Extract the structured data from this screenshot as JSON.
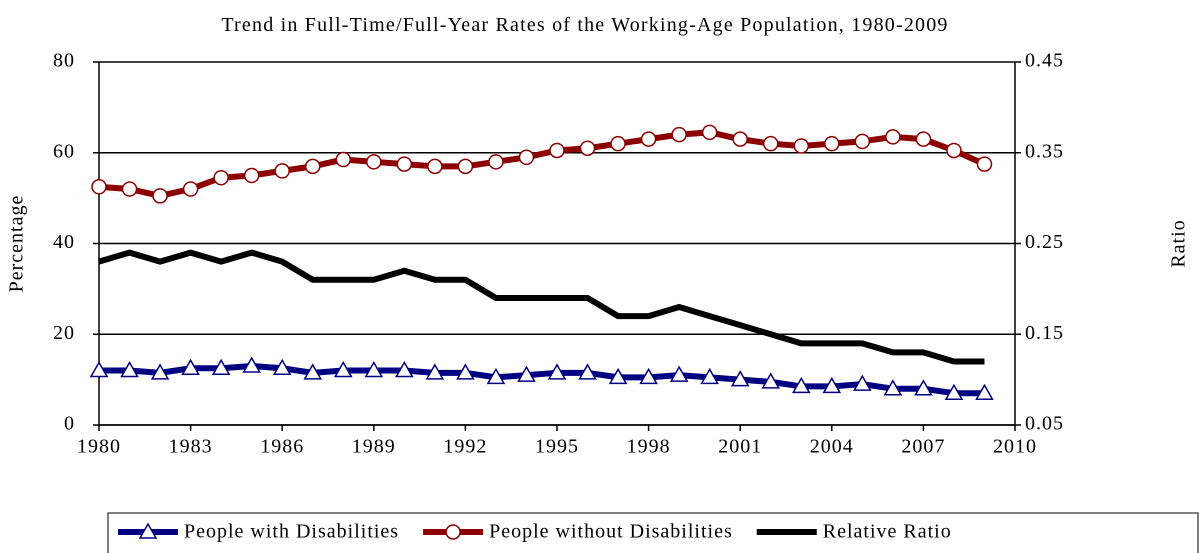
{
  "chart_data": {
    "type": "line",
    "title": "Trend in Full-Time/Full-Year Rates of the Working-Age Population, 1980-2009",
    "y_label": "Percentage",
    "y2_label": "Ratio",
    "x": [
      1980,
      1981,
      1982,
      1983,
      1984,
      1985,
      1986,
      1987,
      1988,
      1989,
      1990,
      1991,
      1992,
      1993,
      1994,
      1995,
      1996,
      1997,
      1998,
      1999,
      2000,
      2001,
      2002,
      2003,
      2004,
      2005,
      2006,
      2007,
      2008,
      2009
    ],
    "xlim": [
      1980,
      2010
    ],
    "xticks": [
      1980,
      1983,
      1986,
      1989,
      1992,
      1995,
      1998,
      2001,
      2004,
      2007,
      2010
    ],
    "ylim": [
      0,
      80
    ],
    "yticks": [
      0,
      20,
      40,
      60,
      80
    ],
    "y2lim": [
      0.05,
      0.45
    ],
    "y2ticks": [
      0.05,
      0.15,
      0.25,
      0.35,
      0.45
    ],
    "grid": true,
    "legend": "bottom",
    "series": [
      {
        "name": "People with Disabilities",
        "color": "#000080",
        "marker": "triangle",
        "values": [
          12,
          12,
          11.5,
          12.5,
          12.5,
          13,
          12.5,
          11.5,
          12,
          12,
          12,
          11.5,
          11.5,
          10.5,
          11,
          11.5,
          11.5,
          10.5,
          10.5,
          11,
          10.5,
          10,
          9.5,
          8.5,
          8.5,
          9,
          8,
          8,
          7,
          7
        ]
      },
      {
        "name": "People without Disabilities",
        "color": "#8b0000",
        "marker": "circle",
        "values": [
          52.5,
          52,
          50.5,
          52,
          54.5,
          55,
          56,
          57,
          58.5,
          58,
          57.5,
          57,
          57,
          58,
          59,
          60.5,
          61,
          62,
          63,
          64,
          64.5,
          63,
          62,
          61.5,
          62,
          62.5,
          63.5,
          63,
          60.5,
          57.5
        ]
      },
      {
        "name": "Relative Ratio",
        "color": "#000000",
        "marker": "none",
        "axis": "y2",
        "values": [
          0.23,
          0.24,
          0.23,
          0.24,
          0.23,
          0.24,
          0.23,
          0.21,
          0.21,
          0.21,
          0.22,
          0.21,
          0.21,
          0.19,
          0.19,
          0.19,
          0.19,
          0.17,
          0.17,
          0.18,
          0.17,
          0.16,
          0.15,
          0.14,
          0.14,
          0.14,
          0.13,
          0.13,
          0.12,
          0.12
        ]
      }
    ]
  }
}
